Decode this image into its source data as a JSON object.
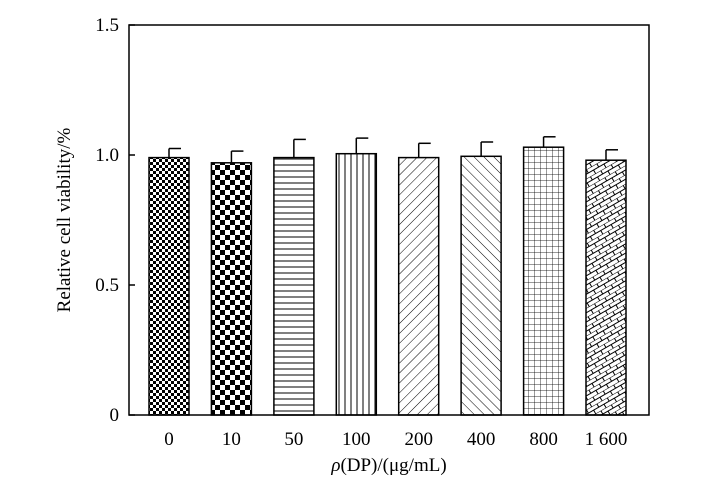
{
  "chart_data": {
    "type": "bar",
    "title": "",
    "xlabel": "ρ(DP)/(μg/mL)",
    "xlabel_parts": {
      "symbol": "ρ",
      "rest": "(DP)/(μg/mL)"
    },
    "ylabel": "Relative cell viability/%",
    "ylim": [
      0,
      1.5
    ],
    "yticks": [
      0,
      0.5,
      1.0,
      1.5
    ],
    "ytick_labels": [
      "0",
      "0.5",
      "1.0",
      "1.5"
    ],
    "categories": [
      "0",
      "10",
      "50",
      "100",
      "200",
      "400",
      "800",
      "1 600"
    ],
    "values": [
      0.99,
      0.97,
      0.99,
      1.005,
      0.99,
      0.995,
      1.03,
      0.98
    ],
    "errors": [
      0.035,
      0.045,
      0.07,
      0.06,
      0.055,
      0.055,
      0.04,
      0.04
    ],
    "patterns": [
      "small-checker",
      "large-checker",
      "horizontal-lines",
      "vertical-lines",
      "diagonal-up",
      "diagonal-down",
      "grid",
      "brick"
    ],
    "grid": false,
    "legend": "none",
    "bar_fill_color": "#000000",
    "background": "#ffffff"
  }
}
